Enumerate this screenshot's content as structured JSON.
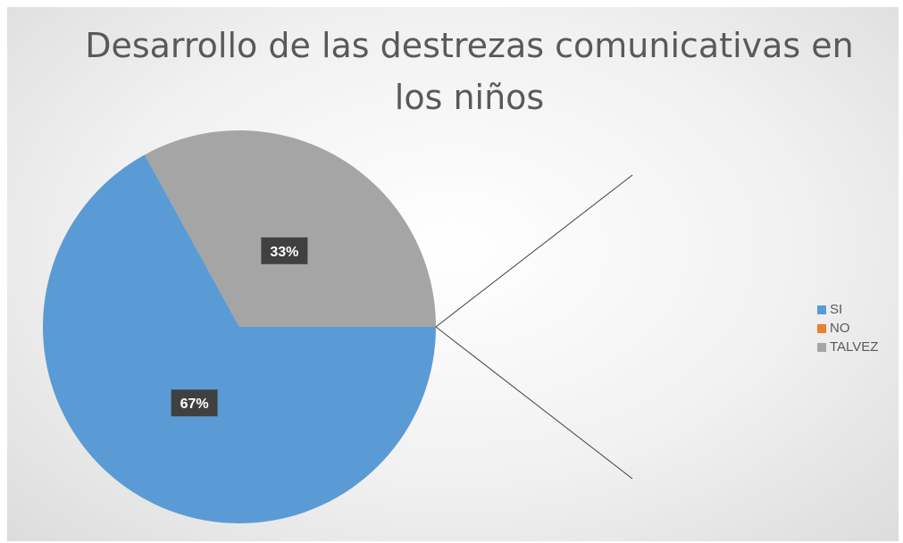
{
  "chart_data": {
    "type": "pie",
    "title": "Desarrollo de las destrezas comunicativas en los niños",
    "title_lines": [
      "Desarrollo de las destrezas comunicativas en",
      "los niños"
    ],
    "categories": [
      "SI",
      "NO",
      "TALVEZ"
    ],
    "values": [
      67,
      0,
      33
    ],
    "data_labels": [
      "67%",
      "",
      "33%"
    ],
    "colors": [
      "#5b9bd5",
      "#ed7d31",
      "#a5a5a5"
    ],
    "legend": {
      "position": "right",
      "entries": [
        "SI",
        "NO",
        "TALVEZ"
      ]
    }
  }
}
